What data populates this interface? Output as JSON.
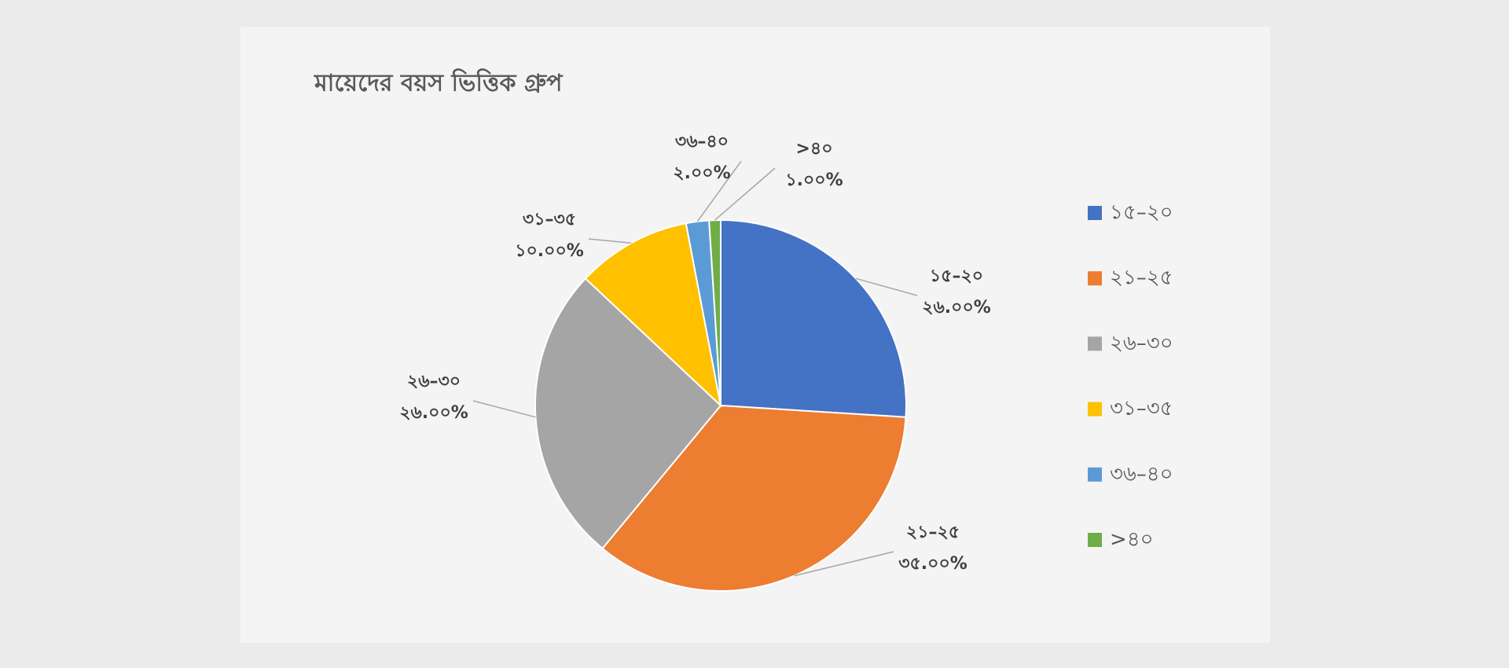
{
  "chart_data": {
    "type": "pie",
    "title": "মায়েদের বয়স ভিত্তিক গ্রুপ",
    "categories": [
      "১৫–২০",
      "২১–২৫",
      "২৬–৩০",
      "৩১–৩৫",
      "৩৬–৪০",
      ">৪০"
    ],
    "values": [
      26,
      35,
      26,
      10,
      2,
      1
    ],
    "value_labels": [
      "২৬.০০%",
      "৩৫.০০%",
      "২৬.০০%",
      "১০.০০%",
      "২.০০%",
      "১.০০%"
    ],
    "colors": [
      "#4472c4",
      "#ed7d31",
      "#a5a5a5",
      "#ffc000",
      "#5b9bd5",
      "#70ad47"
    ],
    "legend": "right"
  }
}
